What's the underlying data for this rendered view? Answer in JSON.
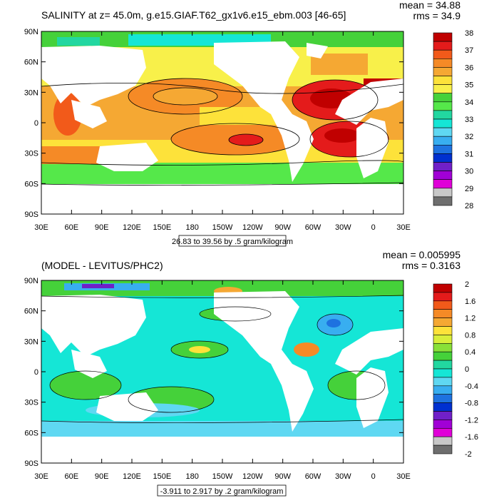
{
  "panels": [
    {
      "title": "SALINITY at z=  45.0m, g.e15.GIAF.T62_gx1v6.e15_ebm.003 [46-65]",
      "mean": "mean = 34.88",
      "rms": "rms = 34.9",
      "range_box": "26.83 to 39.56 by .5 gram/kilogram",
      "lat_labels": [
        "90N",
        "60N",
        "30N",
        "0",
        "30S",
        "60S",
        "90S"
      ],
      "lon_labels": [
        "30E",
        "60E",
        "90E",
        "120E",
        "150E",
        "180",
        "150W",
        "120W",
        "90W",
        "60W",
        "30W",
        "0",
        "30E"
      ],
      "colorbar_labels": [
        "38",
        "37",
        "36",
        "35",
        "34",
        "33",
        "32",
        "31",
        "30",
        "29",
        "28"
      ],
      "colorbar_colors": [
        "#c00000",
        "#e41b1b",
        "#f25a1a",
        "#f58a26",
        "#f5a833",
        "#fde23a",
        "#f8f04a",
        "#45d13a",
        "#55e84a",
        "#22d7a0",
        "#15e6d6",
        "#5fd8f2",
        "#38aef0",
        "#1e72e0",
        "#0030d0",
        "#7020c8",
        "#a100d6",
        "#e000d8",
        "#c8c8c8",
        "#6e6e6e"
      ]
    },
    {
      "title": "(MODEL - LEVITUS/PHC2)",
      "mean": "mean = 0.005995",
      "rms": "rms = 0.3163",
      "range_box": "-3.911 to 2.917 by .2 gram/kilogram",
      "lat_labels": [
        "90N",
        "60N",
        "30N",
        "0",
        "30S",
        "60S",
        "90S"
      ],
      "lon_labels": [
        "30E",
        "60E",
        "90E",
        "120E",
        "150E",
        "180",
        "150W",
        "120W",
        "90W",
        "60W",
        "30W",
        "0",
        "30E"
      ],
      "colorbar_labels": [
        "2",
        "1.6",
        "1.2",
        "0.8",
        "0.4",
        "0",
        "-0.4",
        "-0.8",
        "-1.2",
        "-1.6",
        "-2"
      ],
      "colorbar_colors": [
        "#c00000",
        "#e41b1b",
        "#f25a1a",
        "#f58a26",
        "#f5a833",
        "#fde23a",
        "#d8ee3a",
        "#88e038",
        "#45d13a",
        "#22d7a0",
        "#15e6d6",
        "#5fd8f2",
        "#38aef0",
        "#1e72e0",
        "#0030d0",
        "#7020c8",
        "#a100d6",
        "#e000d8",
        "#c8c8c8",
        "#6e6e6e"
      ]
    }
  ]
}
